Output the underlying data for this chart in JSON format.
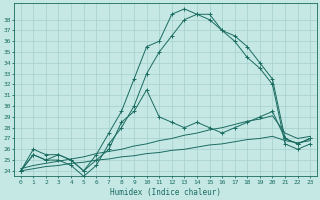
{
  "xlabel": "Humidex (Indice chaleur)",
  "xlim": [
    -0.5,
    23.5
  ],
  "ylim": [
    23.5,
    39.5
  ],
  "yticks": [
    24,
    25,
    26,
    27,
    28,
    29,
    30,
    31,
    32,
    33,
    34,
    35,
    36,
    37,
    38
  ],
  "xticks": [
    0,
    1,
    2,
    3,
    4,
    5,
    6,
    7,
    8,
    9,
    10,
    11,
    12,
    13,
    14,
    15,
    16,
    17,
    18,
    19,
    20,
    21,
    22,
    23
  ],
  "bg_color": "#c5e8e5",
  "grid_color": "#aad4d0",
  "line_color": "#1a6b60",
  "series": {
    "line1": [
      24.0,
      26.0,
      25.5,
      25.5,
      25.0,
      24.0,
      25.5,
      27.5,
      29.5,
      32.5,
      35.5,
      36.0,
      38.5,
      39.0,
      38.5,
      38.5,
      37.0,
      36.5,
      35.5,
      34.0,
      32.5,
      27.0,
      26.5,
      27.0
    ],
    "line2": [
      24.0,
      25.5,
      25.0,
      25.0,
      24.5,
      23.5,
      24.5,
      26.5,
      28.0,
      30.0,
      33.0,
      35.0,
      36.5,
      38.0,
      38.5,
      38.0,
      37.0,
      36.0,
      34.5,
      33.5,
      32.0,
      26.5,
      26.0,
      26.5
    ],
    "line3": [
      24.0,
      25.5,
      25.0,
      25.5,
      25.0,
      24.0,
      25.0,
      26.0,
      28.5,
      29.5,
      31.5,
      29.0,
      28.5,
      28.0,
      28.5,
      28.0,
      27.5,
      28.0,
      28.5,
      29.0,
      29.5,
      27.0,
      26.5,
      27.0
    ],
    "trend1": [
      24.2,
      24.5,
      24.7,
      24.9,
      25.1,
      25.3,
      25.6,
      25.8,
      26.0,
      26.3,
      26.5,
      26.8,
      27.0,
      27.3,
      27.5,
      27.8,
      28.0,
      28.3,
      28.6,
      28.8,
      29.1,
      27.5,
      27.0,
      27.2
    ],
    "trend2": [
      24.0,
      24.2,
      24.4,
      24.5,
      24.7,
      24.8,
      25.0,
      25.1,
      25.3,
      25.4,
      25.6,
      25.7,
      25.9,
      26.0,
      26.2,
      26.4,
      26.5,
      26.7,
      26.9,
      27.0,
      27.2,
      26.8,
      26.6,
      26.8
    ]
  }
}
